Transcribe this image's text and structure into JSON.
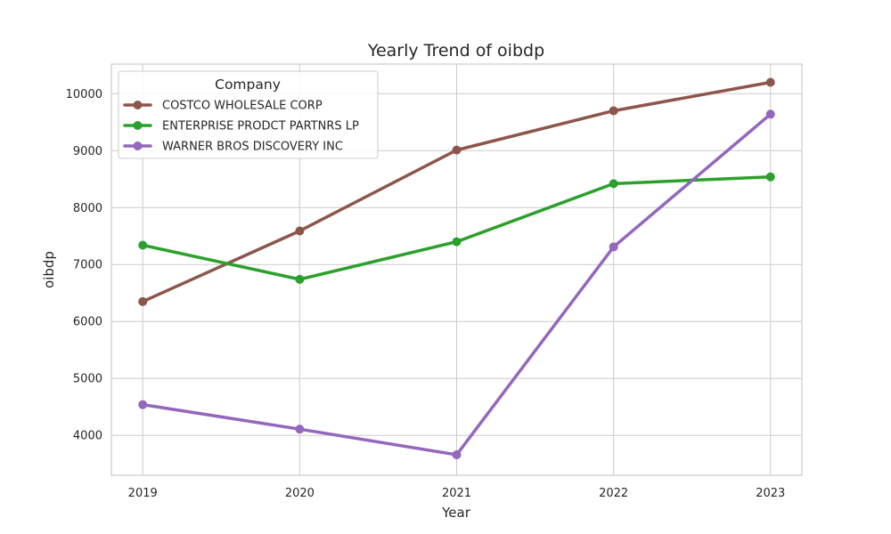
{
  "chart_data": {
    "type": "line",
    "title": "Yearly Trend of oibdp",
    "xlabel": "Year",
    "ylabel": "oibdp",
    "categories": [
      "2019",
      "2020",
      "2021",
      "2022",
      "2023"
    ],
    "x": [
      2019,
      2020,
      2021,
      2022,
      2023
    ],
    "xlim": [
      2018.8,
      2023.2
    ],
    "ylim": [
      3300,
      10520
    ],
    "yticks": [
      4000,
      5000,
      6000,
      7000,
      8000,
      9000,
      10000
    ],
    "grid": true,
    "legend": {
      "title": "Company",
      "placement": "top-left"
    },
    "series": [
      {
        "name": "COSTCO WHOLESALE CORP",
        "color": "#8c564b",
        "values": [
          6350,
          7590,
          9010,
          9700,
          10200
        ]
      },
      {
        "name": "ENTERPRISE PRODCT PARTNRS LP",
        "color": "#2ca02c",
        "values": [
          7340,
          6740,
          7400,
          8420,
          8540
        ]
      },
      {
        "name": "WARNER BROS DISCOVERY INC",
        "color": "#9467bd",
        "values": [
          4540,
          4110,
          3660,
          7310,
          9640
        ]
      }
    ]
  }
}
